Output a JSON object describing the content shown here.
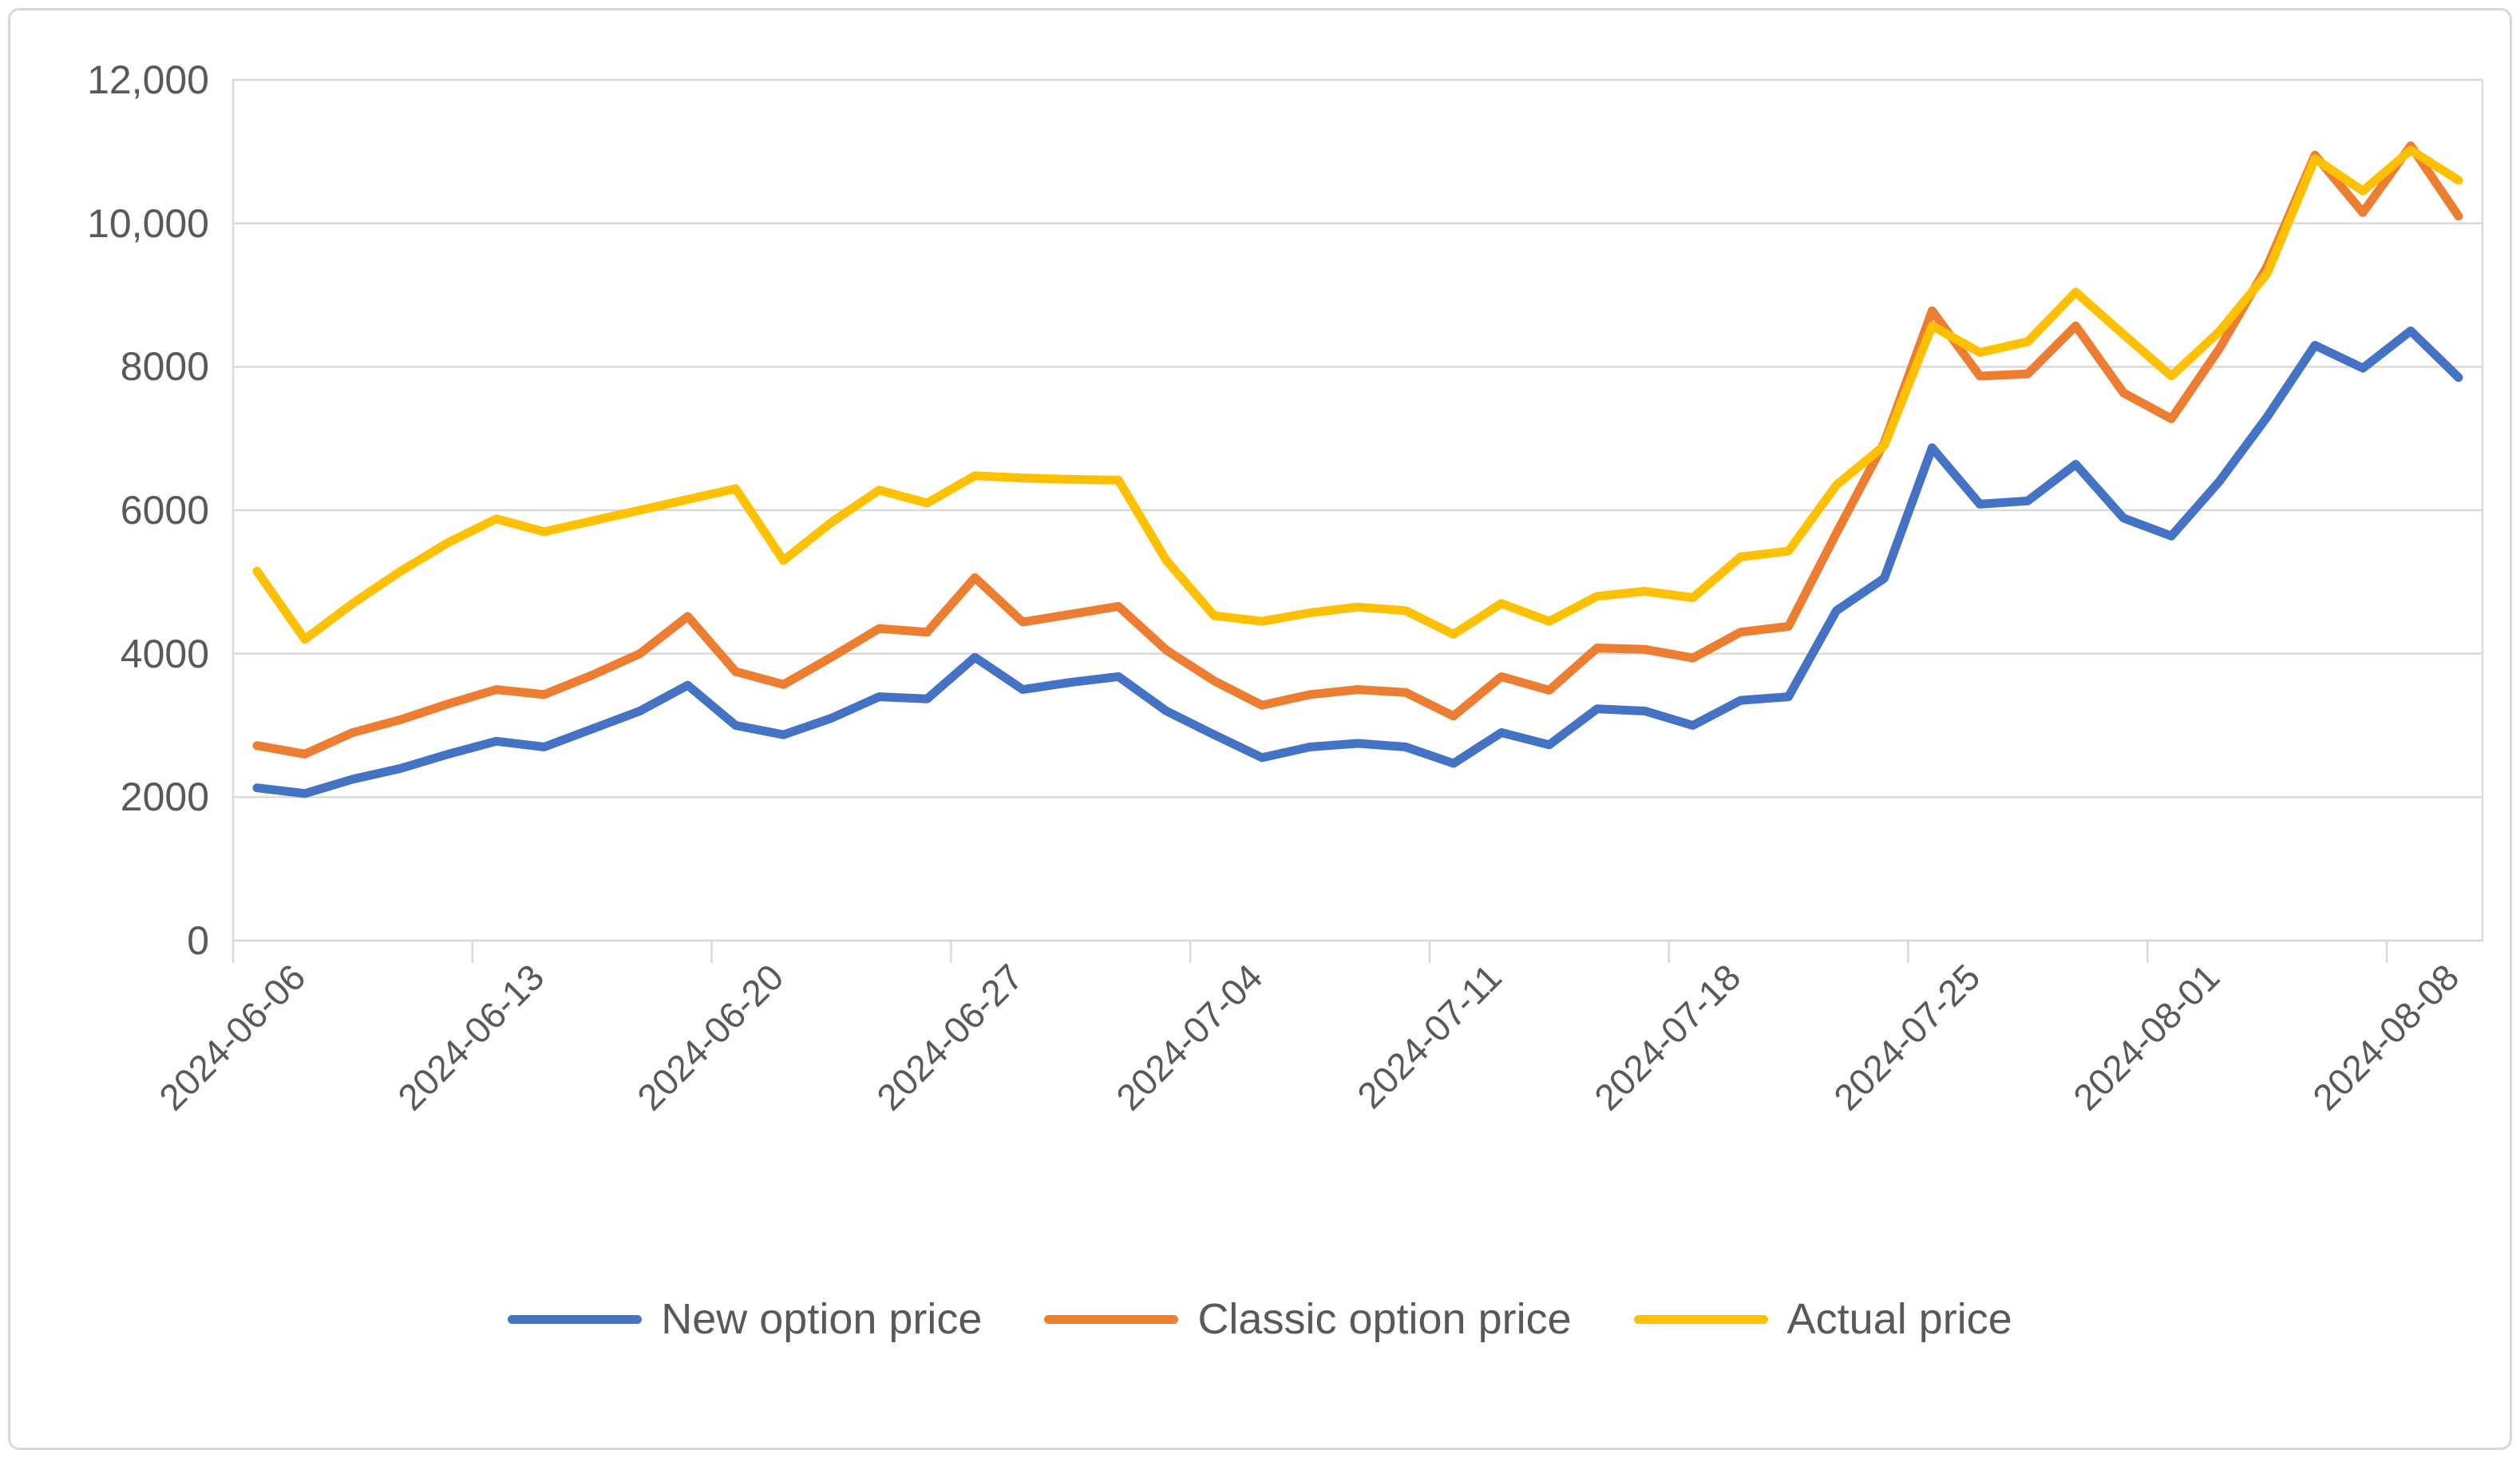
{
  "chart_data": {
    "type": "line",
    "title": "",
    "xlabel": "",
    "ylabel": "",
    "ylim": [
      0,
      12000
    ],
    "grid": "horizontal",
    "legend_position": "bottom",
    "y_ticks": [
      {
        "value": 0,
        "label": "0"
      },
      {
        "value": 2000,
        "label": "2000"
      },
      {
        "value": 4000,
        "label": "4000"
      },
      {
        "value": 6000,
        "label": "6000"
      },
      {
        "value": 8000,
        "label": "8000"
      },
      {
        "value": 10000,
        "label": "10,000"
      },
      {
        "value": 12000,
        "label": "12,000"
      }
    ],
    "x_tick_labels": [
      "2024-06-06",
      "2024-06-13",
      "2024-06-20",
      "2024-06-27",
      "2024-07-04",
      "2024-07-11",
      "2024-07-18",
      "2024-07-25",
      "2024-08-01",
      "2024-08-08"
    ],
    "x_tick_every": 5,
    "x": [
      "2024-06-06",
      "2024-06-07",
      "2024-06-10",
      "2024-06-11",
      "2024-06-12",
      "2024-06-13",
      "2024-06-14",
      "2024-06-17",
      "2024-06-18",
      "2024-06-19",
      "2024-06-20",
      "2024-06-21",
      "2024-06-24",
      "2024-06-25",
      "2024-06-26",
      "2024-06-27",
      "2024-06-28",
      "2024-07-01",
      "2024-07-02",
      "2024-07-03",
      "2024-07-04",
      "2024-07-05",
      "2024-07-08",
      "2024-07-09",
      "2024-07-10",
      "2024-07-11",
      "2024-07-12",
      "2024-07-15",
      "2024-07-16",
      "2024-07-17",
      "2024-07-18",
      "2024-07-19",
      "2024-07-22",
      "2024-07-23",
      "2024-07-24",
      "2024-07-25",
      "2024-07-26",
      "2024-07-29",
      "2024-07-30",
      "2024-07-31",
      "2024-08-01",
      "2024-08-02",
      "2024-08-05",
      "2024-08-06",
      "2024-08-07",
      "2024-08-08",
      "2024-08-09"
    ],
    "series": [
      {
        "name": "New option price",
        "color": "#4472C4",
        "values": [
          2130,
          2050,
          2250,
          2400,
          2600,
          2780,
          2700,
          2950,
          3200,
          3560,
          3000,
          2870,
          3100,
          3400,
          3370,
          3950,
          3500,
          3600,
          3680,
          3200,
          2870,
          2550,
          2700,
          2750,
          2700,
          2470,
          2900,
          2730,
          3230,
          3200,
          3000,
          3350,
          3400,
          4600,
          5050,
          6870,
          6085,
          6130,
          6640,
          5890,
          5640,
          6400,
          7300,
          8300,
          7980,
          8500,
          7850
        ]
      },
      {
        "name": "Classic option price",
        "color": "#ED7D31",
        "values": [
          2720,
          2600,
          2900,
          3080,
          3300,
          3500,
          3430,
          3700,
          4000,
          4520,
          3750,
          3570,
          3950,
          4350,
          4300,
          5060,
          4440,
          4550,
          4660,
          4050,
          3620,
          3280,
          3430,
          3500,
          3460,
          3130,
          3680,
          3490,
          4080,
          4060,
          3940,
          4300,
          4380,
          5680,
          6940,
          8780,
          7870,
          7900,
          8570,
          7635,
          7275,
          8250,
          9400,
          10950,
          10150,
          11080,
          10100
        ]
      },
      {
        "name": "Actual price",
        "color": "#FFC000",
        "values": [
          5150,
          4200,
          4700,
          5150,
          5550,
          5880,
          5700,
          5850,
          6000,
          6150,
          6300,
          5300,
          5830,
          6280,
          6100,
          6480,
          6450,
          6430,
          6420,
          5300,
          4530,
          4450,
          4570,
          4650,
          4600,
          4270,
          4700,
          4450,
          4800,
          4870,
          4780,
          5350,
          5430,
          6350,
          6900,
          8570,
          8200,
          8350,
          9040,
          8450,
          7870,
          8490,
          9300,
          10900,
          10450,
          11020,
          10600
        ]
      }
    ]
  },
  "styles": {
    "grid_color": "#d9d9d9",
    "axis_text_color": "#595959",
    "background": "#ffffff"
  }
}
